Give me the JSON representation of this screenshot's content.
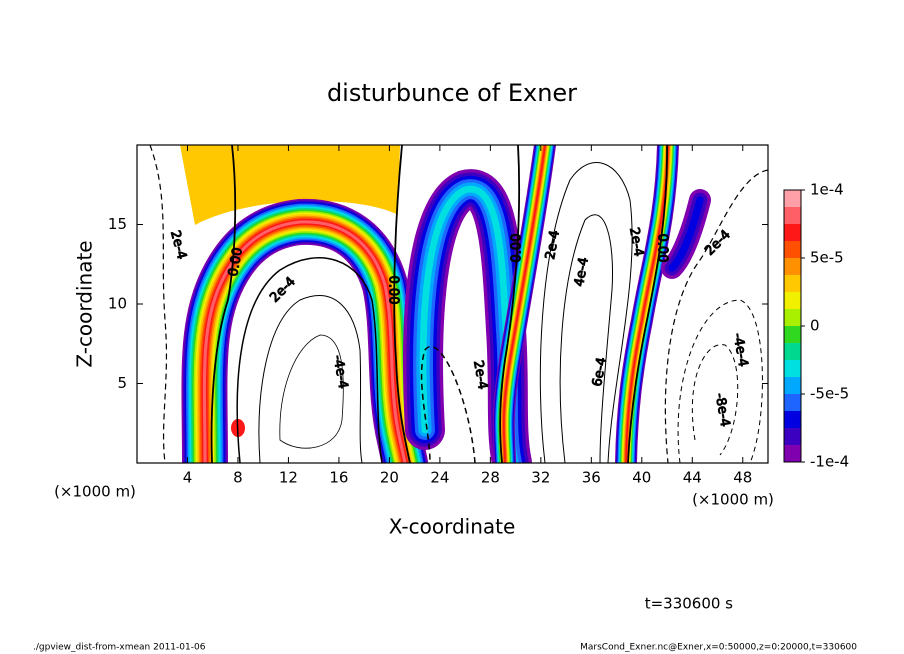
{
  "chart_data": {
    "type": "contour",
    "title": "disturbunce of Exner",
    "xlabel": "X-coordinate",
    "ylabel": "Z-coordinate",
    "x_units": [
      "(×1000 m)",
      "(×1000 m)"
    ],
    "xlim": [
      0,
      50
    ],
    "xticks": [
      4,
      8,
      12,
      16,
      20,
      24,
      28,
      32,
      36,
      40,
      44,
      48
    ],
    "ylim": [
      0,
      20
    ],
    "yticks": [
      5,
      10,
      15
    ],
    "clim": [
      -0.0001,
      0.0001
    ],
    "cticks": [
      {
        "value": 0.0001,
        "label": "1e-4"
      },
      {
        "value": 5e-05,
        "label": "5e-5"
      },
      0,
      {
        "value": -5e-05,
        "label": "-5e-5"
      },
      {
        "value": -0.0001,
        "label": "-1e-4"
      }
    ],
    "colormap": [
      "#ffa0a8",
      "#ff6068",
      "#ff1818",
      "#ff5000",
      "#ff9000",
      "#ffc800",
      "#f0f000",
      "#a8f000",
      "#30d820",
      "#00d890",
      "#00e0e0",
      "#00a8ff",
      "#1e64ff",
      "#0000e0",
      "#3c00c0",
      "#8000b0"
    ],
    "contour_labels": [
      {
        "value": 0.0002,
        "label": "2e-4"
      },
      {
        "value": 0,
        "label": "0.00"
      },
      {
        "value": 0.0002,
        "label": "2e-4"
      },
      {
        "value": -0.0004,
        "label": "-4e-4"
      },
      {
        "value": 0,
        "label": "0.00"
      },
      {
        "value": 0.0002,
        "label": "2e-4"
      },
      {
        "value": 0,
        "label": "0.00"
      },
      {
        "value": 0.0002,
        "label": "2e-4"
      },
      {
        "value": 0.0004,
        "label": "4e-4"
      },
      {
        "value": 0.0006,
        "label": "6e-4"
      },
      {
        "value": 0.0002,
        "label": "2e-4"
      },
      {
        "value": 0,
        "label": "0.00"
      },
      {
        "value": 0.0002,
        "label": "2e-4"
      },
      {
        "value": -0.0004,
        "label": "-4e-4"
      },
      {
        "value": -0.0008,
        "label": "-8e-4"
      }
    ],
    "time_label": "t=330600 s",
    "footer_left": "./gpview_dist-from-xmean  2011-01-06",
    "footer_right": "MarsCond_Exner.nc@Exner,x=0:50000,z=0:20000,t=330600"
  }
}
